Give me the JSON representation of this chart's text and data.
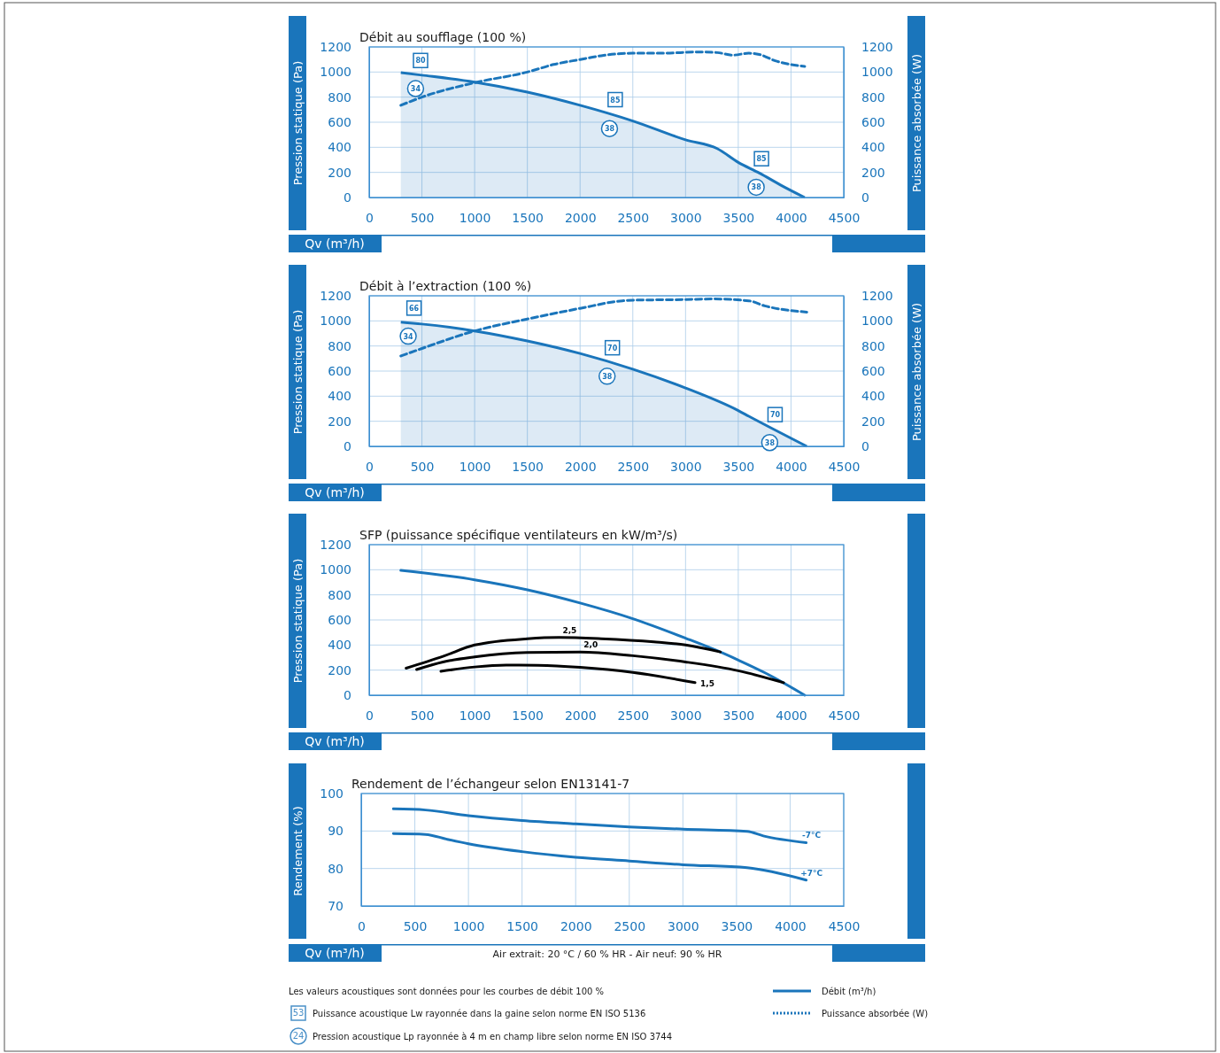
{
  "chart_data": [
    {
      "type": "line",
      "title": "Débit au soufflage (100 %)",
      "xlabel": "Qv (m³/h)",
      "ylabel": "Pression statique (Pa)",
      "y2label": "Puissance absorbée (W)",
      "xlim": [
        0,
        4500
      ],
      "xticks": [
        0,
        500,
        1000,
        1500,
        2000,
        2500,
        3000,
        3500,
        4000,
        4500
      ],
      "ylim": [
        0,
        1200
      ],
      "yticks": [
        0,
        200,
        400,
        600,
        800,
        1000,
        1200
      ],
      "y2lim": [
        0,
        1200
      ],
      "y2ticks": [
        0,
        200,
        400,
        600,
        800,
        1000,
        1200
      ],
      "grid": true,
      "legend": "bottom",
      "series": [
        {
          "name": "Débit (m³/h)",
          "type": "area",
          "color": "#1a75bb",
          "x": [
            300,
            500,
            1000,
            1500,
            2000,
            2500,
            3000,
            3300,
            3500,
            3700,
            3900,
            4130
          ],
          "values": [
            995,
            975,
            920,
            840,
            735,
            610,
            460,
            390,
            280,
            195,
            100,
            0
          ]
        },
        {
          "name": "Puissance absorbée (W)",
          "axis": "y2",
          "line_style": "dashed",
          "color": "#1a75bb",
          "x": [
            300,
            500,
            1000,
            1500,
            1750,
            2000,
            2200,
            2500,
            2800,
            3100,
            3300,
            3450,
            3600,
            3700,
            3850,
            4130
          ],
          "values": [
            735,
            800,
            915,
            1000,
            1060,
            1100,
            1130,
            1150,
            1150,
            1160,
            1155,
            1135,
            1150,
            1140,
            1090,
            1045
          ]
        }
      ],
      "annotations": [
        {
          "text": "80",
          "x": 487,
          "y": 1092
        },
        {
          "text": "34",
          "x": 440,
          "y": 868
        },
        {
          "text": "85",
          "x": 2333,
          "y": 780
        },
        {
          "text": "38",
          "x": 2279,
          "y": 549
        },
        {
          "text": "85",
          "x": 3720,
          "y": 309
        },
        {
          "text": "38",
          "x": 3670,
          "y": 82
        },
        "Les valeurs acoustiques sont données pour les courbes de débit 100 %",
        "53",
        "Puissance acoustique Lw rayonnée dans la gaine selon norme EN ISO 5136",
        "24",
        "Pression acoustique Lp rayonnée à 4 m en champ libre selon norme EN ISO 3744"
      ]
    },
    {
      "type": "line",
      "title": "Débit à l’extraction (100 %)",
      "xlabel": "Qv (m³/h)",
      "ylabel": "Pression statique (Pa)",
      "y2label": "Puissance absorbée (W)",
      "xlim": [
        0,
        4500
      ],
      "xticks": [
        0,
        500,
        1000,
        1500,
        2000,
        2500,
        3000,
        3500,
        4000,
        4500
      ],
      "ylim": [
        0,
        1200
      ],
      "yticks": [
        0,
        200,
        400,
        600,
        800,
        1000,
        1200
      ],
      "y2lim": [
        0,
        1200
      ],
      "y2ticks": [
        0,
        200,
        400,
        600,
        800,
        1000,
        1200
      ],
      "grid": true,
      "series": [
        {
          "type": "area",
          "color": "#1a75bb",
          "x": [
            300,
            500,
            1000,
            1500,
            2000,
            2500,
            3000,
            3500,
            3600,
            4150
          ],
          "values": [
            990,
            975,
            920,
            840,
            740,
            615,
            465,
            285,
            240,
            0
          ]
        },
        {
          "axis": "y2",
          "line_style": "dashed",
          "color": "#1a75bb",
          "x": [
            300,
            500,
            1000,
            1500,
            2000,
            2400,
            2500,
            3000,
            3250,
            3600,
            3750,
            4150
          ],
          "values": [
            720,
            780,
            920,
            1015,
            1100,
            1160,
            1165,
            1170,
            1175,
            1160,
            1120,
            1070
          ]
        }
      ],
      "annotations": [
        {
          "text": "66",
          "x": 425,
          "y": 1102
        },
        {
          "text": "34",
          "x": 370,
          "y": 878
        },
        {
          "text": "70",
          "x": 2306,
          "y": 786
        },
        {
          "text": "38",
          "x": 2256,
          "y": 559
        },
        {
          "text": "70",
          "x": 3849,
          "y": 253
        },
        {
          "text": "38",
          "x": 3798,
          "y": 30
        }
      ]
    },
    {
      "type": "line",
      "title": "SFP (puissance spécifique ventilateurs en kW/m³/s)",
      "xlabel": "Qv (m³/h)",
      "ylabel": "Pression statique (Pa)",
      "xlim": [
        0,
        4500
      ],
      "xticks": [
        0,
        500,
        1000,
        1500,
        2000,
        2500,
        3000,
        3500,
        4000,
        4500
      ],
      "ylim": [
        0,
        1200
      ],
      "yticks": [
        0,
        200,
        400,
        600,
        800,
        1000,
        1200
      ],
      "grid": true,
      "series": [
        {
          "color": "#1a75bb",
          "x": [
            300,
            1000,
            1500,
            2000,
            2500,
            3000,
            3300,
            3500,
            3750,
            4130
          ],
          "values": [
            995,
            920,
            840,
            735,
            610,
            455,
            355,
            280,
            180,
            0
          ]
        },
        {
          "name": "2,5",
          "color": "#000000",
          "x": [
            350,
            700,
            1000,
            1500,
            1800,
            2200,
            2700,
            3000,
            3330
          ],
          "values": [
            215,
            310,
            400,
            450,
            460,
            450,
            425,
            400,
            345
          ]
        },
        {
          "name": "2,0",
          "color": "#000000",
          "x": [
            450,
            700,
            1000,
            1500,
            2000,
            2500,
            3000,
            3500,
            3930
          ],
          "values": [
            205,
            265,
            305,
            340,
            345,
            315,
            265,
            195,
            100
          ]
        },
        {
          "name": "1,5",
          "color": "#000000",
          "x": [
            680,
            1000,
            1300,
            1600,
            2000,
            2500,
            3090
          ],
          "values": [
            190,
            225,
            240,
            238,
            222,
            182,
            100
          ]
        }
      ]
    },
    {
      "type": "line",
      "title": "Rendement de l’échangeur selon EN13141-7",
      "xlabel": "Qv (m³/h)",
      "ylabel": "Rendement (%)",
      "xlim": [
        0,
        4500
      ],
      "xticks": [
        0,
        500,
        1000,
        1500,
        2000,
        2500,
        3000,
        3500,
        4000,
        4500
      ],
      "ylim": [
        70,
        100
      ],
      "yticks": [
        70,
        80,
        90,
        100
      ],
      "grid": true,
      "series": [
        {
          "name": "-7°C",
          "color": "#1a75bb",
          "x": [
            300,
            600,
            1000,
            1500,
            2000,
            2500,
            3000,
            3600,
            3750,
            4150
          ],
          "values": [
            95.9,
            95.6,
            94.1,
            92.8,
            91.9,
            91.1,
            90.5,
            89.9,
            88.7,
            86.9
          ]
        },
        {
          "name": "+7°C",
          "color": "#1a75bb",
          "x": [
            300,
            600,
            800,
            1000,
            1500,
            2000,
            2500,
            3000,
            3600,
            4150
          ],
          "values": [
            89.3,
            89.1,
            87.8,
            86.6,
            84.5,
            83.0,
            82.0,
            81.0,
            80.2,
            76.9
          ]
        }
      ],
      "annotations": [
        "Air extrait: 20 °C / 60 % HR - Air neuf: 90 % HR"
      ]
    }
  ]
}
